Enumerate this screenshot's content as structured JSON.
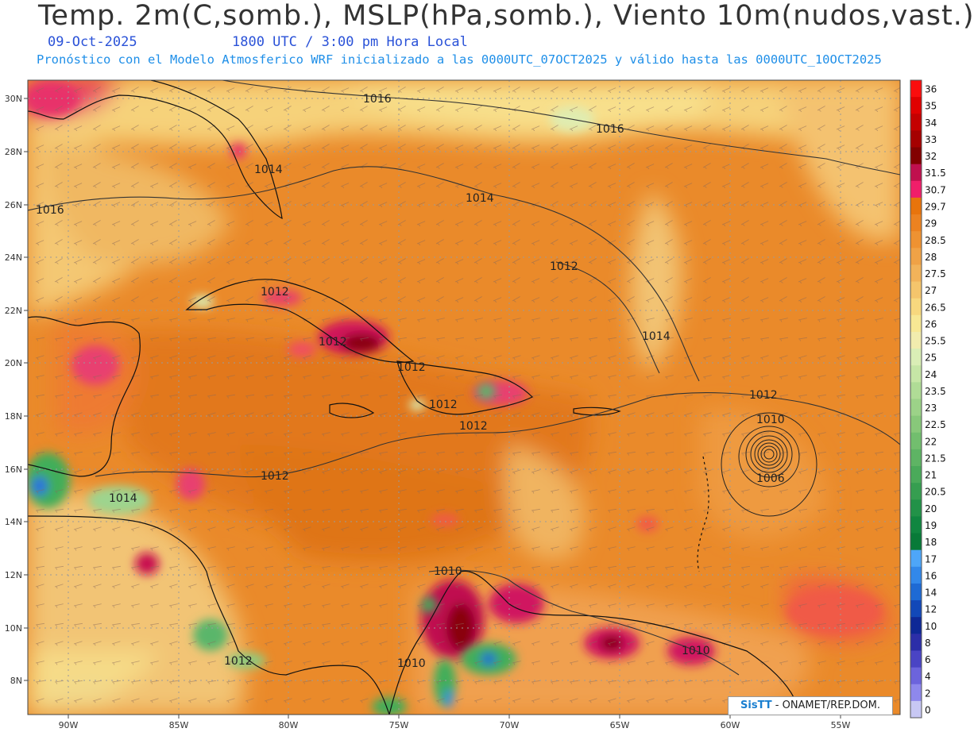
{
  "header": {
    "title": "Temp. 2m(C,somb.), MSLP(hPa,somb.), Viento 10m(nudos,vast.)",
    "date": "09-Oct-2025",
    "time": "1800 UTC / 3:00 pm Hora Local",
    "subtitle": "Pronóstico con el Modelo Atmosferico WRF inicializado a las 0000UTC_07OCT2025 y válido hasta las  0000UTC_10OCT2025"
  },
  "credit": {
    "logo": "SisTT",
    "text": " - ONAMET/REP.DOM."
  },
  "axes": {
    "lat_labels": [
      "30N",
      "28N",
      "26N",
      "24N",
      "22N",
      "20N",
      "18N",
      "16N",
      "14N",
      "12N",
      "10N",
      "8N"
    ],
    "lon_labels": [
      "90W",
      "85W",
      "80W",
      "75W",
      "70W",
      "65W",
      "60W",
      "55W"
    ]
  },
  "isobar_labels": [
    {
      "text": "1016",
      "id": "iso-1016-gulf"
    },
    {
      "text": "1016",
      "id": "iso-1016-north"
    },
    {
      "text": "1016",
      "id": "iso-1016-west"
    },
    {
      "text": "1014",
      "id": "iso-1014-florida"
    },
    {
      "text": "1014",
      "id": "iso-1014-atlantic"
    },
    {
      "text": "1014",
      "id": "iso-1014-east"
    },
    {
      "text": "1014",
      "id": "iso-1014-central-america"
    },
    {
      "text": "1012",
      "id": "iso-1012-bahamas"
    },
    {
      "text": "1012",
      "id": "iso-1012-cuba-west"
    },
    {
      "text": "1012",
      "id": "iso-1012-cuba"
    },
    {
      "text": "1012",
      "id": "iso-1012-haiti"
    },
    {
      "text": "1012",
      "id": "iso-1012-hisp-west"
    },
    {
      "text": "1012",
      "id": "iso-1012-hisp-south"
    },
    {
      "text": "1012",
      "id": "iso-1012-caribbean"
    },
    {
      "text": "1012",
      "id": "iso-1012-east"
    },
    {
      "text": "1012",
      "id": "iso-1012-panama"
    },
    {
      "text": "1010",
      "id": "iso-1010-storm"
    },
    {
      "text": "1006",
      "id": "iso-1006-storm"
    },
    {
      "text": "1010",
      "id": "iso-1010-colombia"
    },
    {
      "text": "1010",
      "id": "iso-1010-sa-west"
    },
    {
      "text": "1010",
      "id": "iso-1010-venezuela"
    }
  ],
  "colorbar": {
    "labels": [
      "36",
      "35",
      "34",
      "33",
      "32",
      "31.5",
      "30.7",
      "29.7",
      "29",
      "28.5",
      "28",
      "27.5",
      "27",
      "26.5",
      "26",
      "25.5",
      "25",
      "24",
      "23.5",
      "23",
      "22.5",
      "22",
      "21.5",
      "21",
      "20.5",
      "20",
      "19",
      "18",
      "17",
      "16",
      "14",
      "12",
      "10",
      "8",
      "6",
      "4",
      "2",
      "0"
    ],
    "colors": [
      "#fb0d0d",
      "#e00000",
      "#c40000",
      "#a50000",
      "#820000",
      "#c0104e",
      "#f01e6a",
      "#e8740c",
      "#ec8220",
      "#ee9232",
      "#f0a246",
      "#f2b35a",
      "#f5c56c",
      "#f8d87e",
      "#f8e894",
      "#f2ecae",
      "#daeeb6",
      "#c6e6a6",
      "#b0dc96",
      "#9cd288",
      "#88c87a",
      "#72be6e",
      "#5eb464",
      "#4aaa5a",
      "#369e50",
      "#229248",
      "#108640",
      "#087a38",
      "#4ea6f8",
      "#3288ea",
      "#1e6ad4",
      "#1248b8",
      "#0e2896",
      "#2c2ea8",
      "#4a44c4",
      "#6c64dc",
      "#8e88ec",
      "#c8c8f4"
    ]
  },
  "legend_sample_colors": {
    "land_border": "#000000",
    "water_warm": "#ec8220",
    "gridlines": "#9a9a9a"
  }
}
